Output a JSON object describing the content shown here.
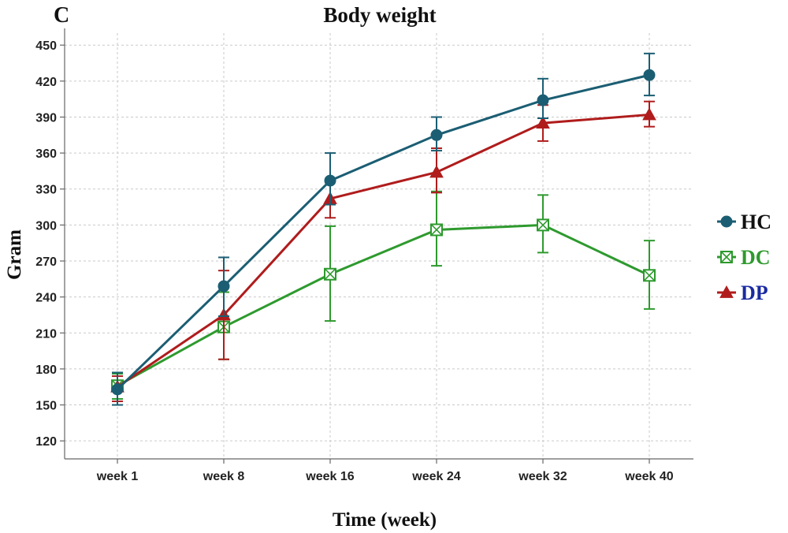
{
  "chart_data": {
    "type": "line",
    "panel_label": "C",
    "title": "Body weight",
    "xlabel": "Time (week)",
    "ylabel": "Gram",
    "categories": [
      "week 1",
      "week 8",
      "week 16",
      "week 24",
      "week 32",
      "week 40"
    ],
    "yticks": [
      120,
      150,
      180,
      210,
      240,
      270,
      300,
      330,
      360,
      390,
      420,
      450
    ],
    "ylim": [
      105,
      460
    ],
    "grid": true,
    "legend_position": "right",
    "series": [
      {
        "name": "HC",
        "color": "#1b5e73",
        "legend_text_color": "#111111",
        "marker": "circle",
        "values": [
          163,
          249,
          337,
          375,
          404,
          425
        ],
        "err_low": [
          150,
          224,
          317,
          362,
          389,
          408
        ],
        "err_high": [
          177,
          273,
          360,
          390,
          422,
          443
        ]
      },
      {
        "name": "DC",
        "color": "#2e9a2e",
        "legend_text_color": "#2e9a2e",
        "marker": "square-x",
        "values": [
          166,
          215,
          259,
          296,
          300,
          258
        ],
        "err_low": [
          155,
          188,
          220,
          266,
          277,
          230
        ],
        "err_high": [
          176,
          244,
          299,
          328,
          325,
          287
        ]
      },
      {
        "name": "DP",
        "color": "#b01c1c",
        "legend_text_color": "#1a2aa0",
        "marker": "triangle",
        "values": [
          165,
          225,
          322,
          344,
          385,
          392
        ],
        "err_low": [
          153,
          188,
          306,
          327,
          370,
          382
        ],
        "err_high": [
          174,
          262,
          336,
          364,
          400,
          403
        ]
      }
    ]
  }
}
